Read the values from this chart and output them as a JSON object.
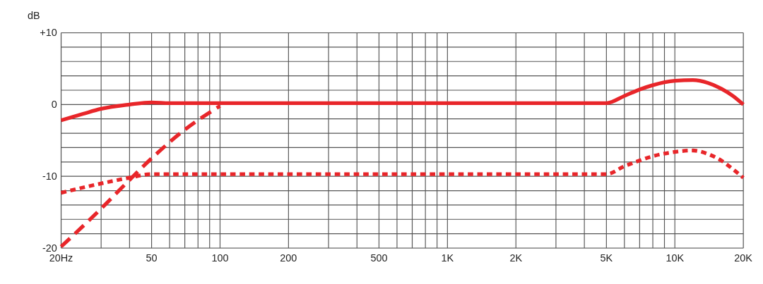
{
  "chart_data": {
    "type": "line",
    "ylabel": "dB",
    "series": [
      {
        "color": "#e8262a",
        "line_style": "solid",
        "x": [
          20,
          25,
          30,
          40,
          50,
          60,
          100,
          1000,
          5000,
          6000,
          7000,
          8000,
          10000,
          12000,
          14000,
          16000,
          18000,
          20000
        ],
        "values": [
          -2.2,
          -1.3,
          -0.6,
          0.0,
          0.3,
          0.2,
          0.2,
          0.2,
          0.2,
          1.2,
          2.1,
          2.7,
          3.3,
          3.4,
          3.0,
          2.2,
          1.2,
          0.0
        ]
      },
      {
        "color": "#e8262a",
        "line_style": "dashed",
        "x": [
          20,
          30,
          40,
          50,
          70,
          100
        ],
        "values": [
          -19.8,
          -14.5,
          -10.5,
          -7.5,
          -3.5,
          -0.2
        ]
      },
      {
        "color": "#e8262a",
        "line_style": "dotted",
        "x": [
          20,
          30,
          40,
          50,
          100,
          1000,
          5000,
          6000,
          7000,
          8000,
          10000,
          12000,
          14000,
          16000,
          18000,
          20000
        ],
        "values": [
          -12.3,
          -11.0,
          -10.2,
          -9.7,
          -9.7,
          -9.7,
          -9.7,
          -8.6,
          -7.8,
          -7.2,
          -6.6,
          -6.4,
          -6.9,
          -7.8,
          -9.0,
          -10.2
        ]
      }
    ],
    "log": "x",
    "grid": true,
    "xlim": [
      20,
      20000
    ],
    "ylim": [
      -20,
      10
    ],
    "xticks": [
      {
        "value": 20,
        "label": "20Hz"
      },
      {
        "value": 30,
        "label": null
      },
      {
        "value": 40,
        "label": null
      },
      50,
      {
        "value": 60,
        "label": null
      },
      {
        "value": 70,
        "label": null
      },
      {
        "value": 80,
        "label": null
      },
      {
        "value": 90,
        "label": null
      },
      100,
      200,
      {
        "value": 300,
        "label": null
      },
      {
        "value": 400,
        "label": null
      },
      500,
      {
        "value": 600,
        "label": null
      },
      {
        "value": 700,
        "label": null
      },
      {
        "value": 800,
        "label": null
      },
      {
        "value": 900,
        "label": null
      },
      {
        "value": 1000,
        "label": "1K"
      },
      {
        "value": 2000,
        "label": "2K"
      },
      {
        "value": 3000,
        "label": null
      },
      {
        "value": 4000,
        "label": null
      },
      {
        "value": 5000,
        "label": "5K"
      },
      {
        "value": 6000,
        "label": null
      },
      {
        "value": 7000,
        "label": null
      },
      {
        "value": 8000,
        "label": null
      },
      {
        "value": 9000,
        "label": null
      },
      {
        "value": 10000,
        "label": "10K"
      },
      {
        "value": 20000,
        "label": "20K"
      }
    ],
    "yticks": [
      -20,
      {
        "value": -18,
        "label": null
      },
      {
        "value": -16,
        "label": null
      },
      {
        "value": -14,
        "label": null
      },
      {
        "value": -12,
        "label": null
      },
      -10,
      {
        "value": -8,
        "label": null
      },
      {
        "value": -6,
        "label": null
      },
      {
        "value": -4,
        "label": null
      },
      {
        "value": -2,
        "label": null
      },
      0,
      {
        "value": 2,
        "label": null
      },
      {
        "value": 4,
        "label": null
      },
      {
        "value": 6,
        "label": null
      },
      {
        "value": 8,
        "label": null
      },
      {
        "value": 10,
        "label": "+10"
      }
    ]
  }
}
